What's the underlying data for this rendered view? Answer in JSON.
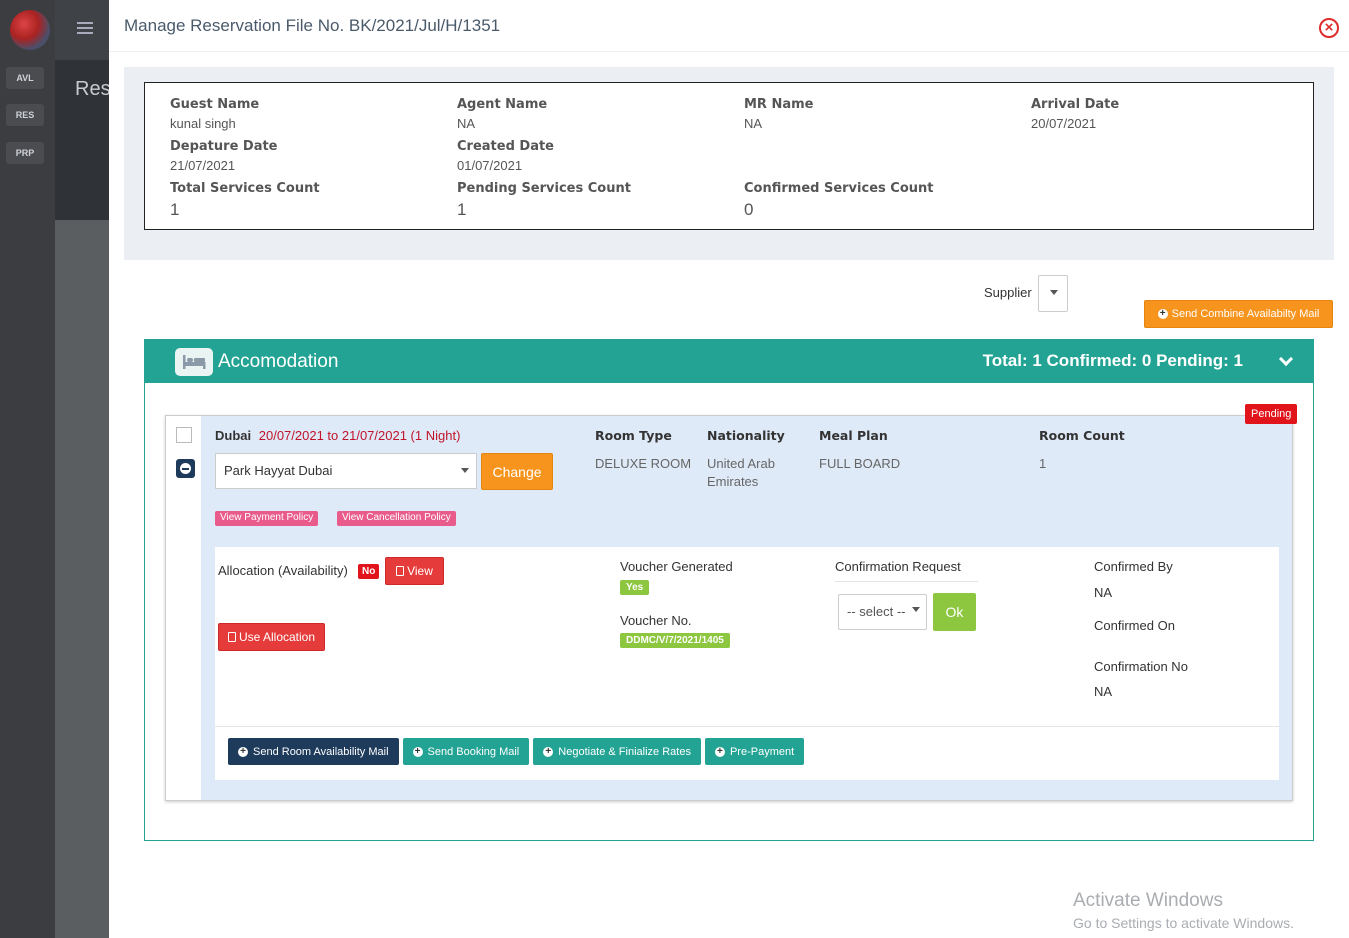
{
  "background": {
    "nav_items": [
      "AVL",
      "RES",
      "PRP"
    ],
    "page_title": "Res"
  },
  "modal": {
    "title": "Manage Reservation File No. BK/2021/Jul/H/1351",
    "close_icon": "close-circle-icon"
  },
  "summary": {
    "guest_name_label": "Guest Name",
    "guest_name": "kunal singh",
    "agent_name_label": "Agent Name",
    "agent_name": "NA",
    "mr_name_label": "MR Name",
    "mr_name": "NA",
    "arrival_date_label": "Arrival Date",
    "arrival_date": "20/07/2021",
    "departure_date_label": "Depature Date",
    "departure_date": "21/07/2021",
    "created_date_label": "Created Date",
    "created_date": "01/07/2021",
    "total_services_label": "Total Services Count",
    "total_services": "1",
    "pending_services_label": "Pending Services Count",
    "pending_services": "1",
    "confirmed_services_label": "Confirmed Services Count",
    "confirmed_services": "0"
  },
  "supplier": {
    "label": "Supplier"
  },
  "combine_mail_button": "Send Combine Availabilty Mail",
  "accommodation": {
    "title": "Accomodation",
    "totals": "Total: 1 Confirmed: 0 Pending: 1",
    "status": "Pending",
    "city": "Dubai",
    "dates": "20/07/2021 to 21/07/2021 (1 Night)",
    "hotel": "Park Hayyat Dubai",
    "change_label": "Change",
    "room_type_label": "Room Type",
    "room_type": "DELUXE ROOM",
    "nationality_label": "Nationality",
    "nationality": "United Arab Emirates",
    "meal_plan_label": "Meal Plan",
    "meal_plan": "FULL BOARD",
    "room_count_label": "Room Count",
    "room_count": "1",
    "payment_policy": "View Payment Policy",
    "cancellation_policy": "View Cancellation Policy",
    "allocation_label": "Allocation (Availability)",
    "allocation_status": "No",
    "view_label": "View",
    "use_allocation_label": "Use Allocation",
    "voucher_generated_label": "Voucher Generated",
    "voucher_generated": "Yes",
    "voucher_no_label": "Voucher No.",
    "voucher_no": "DDMC/V/7/2021/1405",
    "confirmation_request_label": "Confirmation Request",
    "confirmation_select": "-- select --",
    "ok_label": "Ok",
    "confirmed_by_label": "Confirmed By",
    "confirmed_by": "NA",
    "confirmed_on_label": "Confirmed On",
    "confirmation_no_label": "Confirmation No",
    "confirmation_no": "NA",
    "actions": [
      "Send Room Availability Mail",
      "Send Booking Mail",
      "Negotiate & Finialize Rates",
      "Pre-Payment"
    ]
  },
  "watermark": {
    "line1": "Activate Windows",
    "line2": "Go to Settings to activate Windows."
  },
  "colors": {
    "teal": "#23a393",
    "orange": "#f7941d",
    "red": "#e0141a",
    "green": "#8dc63f",
    "navy": "#1e3b5c"
  }
}
